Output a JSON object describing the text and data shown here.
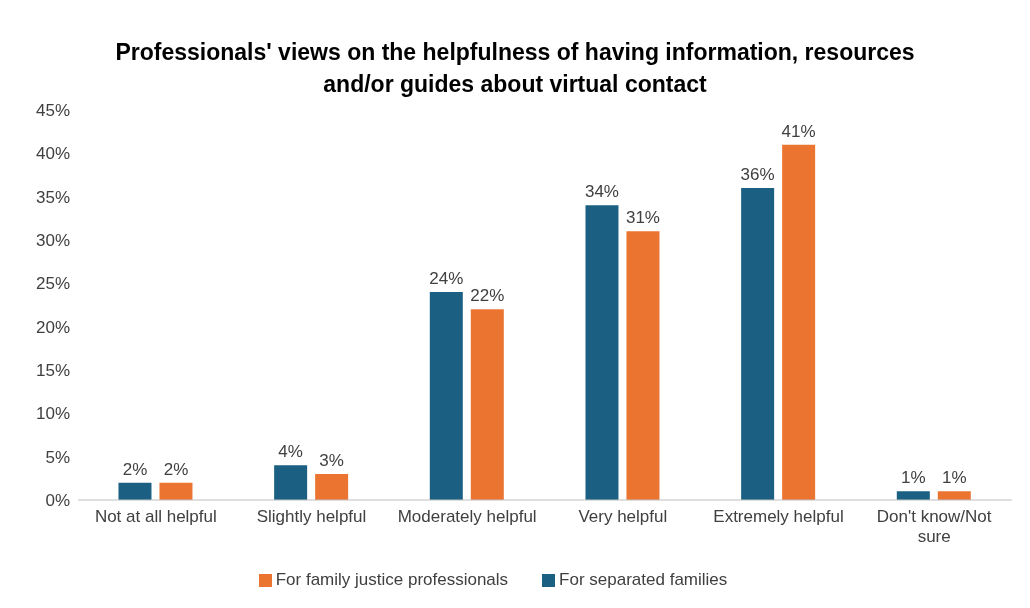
{
  "chart_data": {
    "type": "bar",
    "title": "Professionals' views on the helpfulness of having information, resources and/or guides about virtual contact",
    "categories": [
      "Not at all helpful",
      "Slightly helpful",
      "Moderately helpful",
      "Very helpful",
      "Extremely helpful",
      "Don't know/Not sure"
    ],
    "series": [
      {
        "name": "For separated families",
        "color": "#1b6082",
        "values": [
          2,
          4,
          24,
          34,
          36,
          1
        ],
        "value_labels": [
          "2%",
          "4%",
          "24%",
          "34%",
          "36%",
          "1%"
        ]
      },
      {
        "name": "For family justice professionals",
        "color": "#eb7431",
        "values": [
          2,
          3,
          22,
          31,
          41,
          1
        ],
        "value_labels": [
          "2%",
          "3%",
          "22%",
          "31%",
          "41%",
          "1%"
        ]
      }
    ],
    "ylim": [
      0,
      45
    ],
    "yticks": [
      {
        "value": 0,
        "label": "0%"
      },
      {
        "value": 5,
        "label": "5%"
      },
      {
        "value": 10,
        "label": "10%"
      },
      {
        "value": 15,
        "label": "15%"
      },
      {
        "value": 20,
        "label": "20%"
      },
      {
        "value": 25,
        "label": "25%"
      },
      {
        "value": 30,
        "label": "30%"
      },
      {
        "value": 35,
        "label": "35%"
      },
      {
        "value": 40,
        "label": "40%"
      },
      {
        "value": 45,
        "label": "45%"
      }
    ],
    "legend": "bottom"
  }
}
